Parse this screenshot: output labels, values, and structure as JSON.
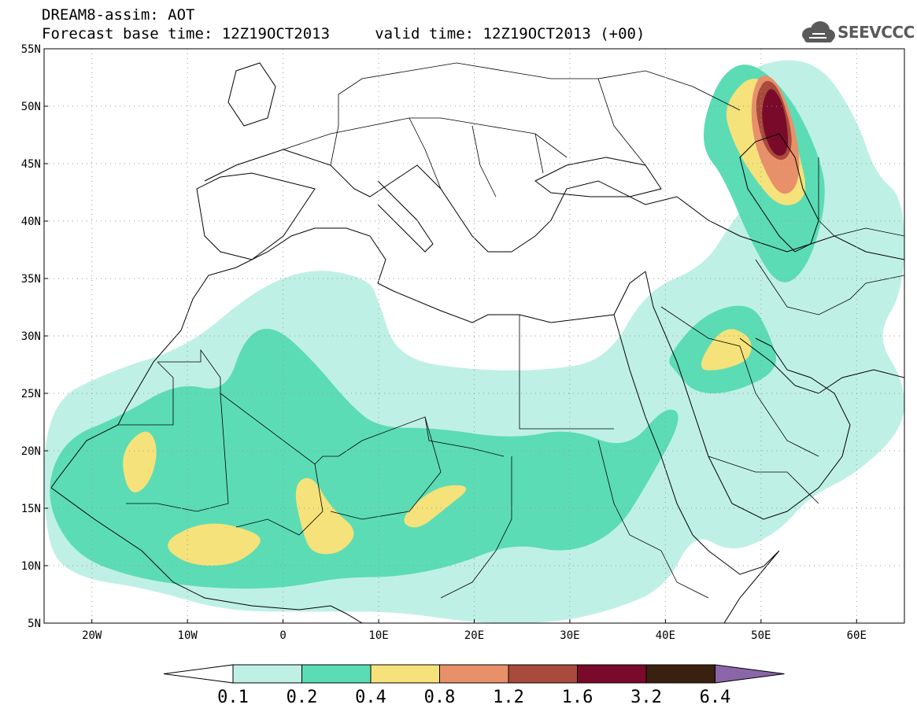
{
  "header": {
    "line1": "DREAM8-assim: AOT",
    "line2": "Forecast base time: 12Z19OCT2013     valid time: 12Z19OCT2013 (+00)"
  },
  "logo": {
    "text": "SEEVCCC",
    "icon": "cloud-icon"
  },
  "map": {
    "lon_range": [
      -25,
      65
    ],
    "lat_range": [
      5,
      55
    ],
    "lat_ticks": [
      {
        "value": 55,
        "label": "55N"
      },
      {
        "value": 50,
        "label": "50N"
      },
      {
        "value": 45,
        "label": "45N"
      },
      {
        "value": 40,
        "label": "40N"
      },
      {
        "value": 35,
        "label": "35N"
      },
      {
        "value": 30,
        "label": "30N"
      },
      {
        "value": 25,
        "label": "25N"
      },
      {
        "value": 20,
        "label": "20N"
      },
      {
        "value": 15,
        "label": "15N"
      },
      {
        "value": 10,
        "label": "10N"
      },
      {
        "value": 5,
        "label": "5N"
      }
    ],
    "lon_ticks": [
      {
        "value": -20,
        "label": "20W"
      },
      {
        "value": -10,
        "label": "10W"
      },
      {
        "value": 0,
        "label": "0"
      },
      {
        "value": 10,
        "label": "10E"
      },
      {
        "value": 20,
        "label": "20E"
      },
      {
        "value": 30,
        "label": "30E"
      },
      {
        "value": 40,
        "label": "40E"
      },
      {
        "value": 50,
        "label": "50E"
      },
      {
        "value": 60,
        "label": "60E"
      }
    ],
    "grid": true,
    "grid_style": "dotted"
  },
  "colorbar": {
    "levels": [
      "0.1",
      "0.2",
      "0.4",
      "0.8",
      "1.2",
      "1.6",
      "3.2",
      "6.4"
    ],
    "under_color": "#ffffff",
    "colors": [
      "#bff0e6",
      "#5cdcb4",
      "#f5e27a",
      "#e8906a",
      "#a84a3c",
      "#7a0a2a",
      "#3a2010"
    ],
    "over_color": "#8a66a8"
  },
  "chart_data": {
    "type": "heatmap",
    "variable": "AOT",
    "levels": [
      0.1,
      0.2,
      0.4,
      0.8,
      1.2,
      1.6,
      3.2,
      6.4
    ],
    "regions": [
      {
        "name": "plume",
        "level": 0.1,
        "ring": [
          [
            -25,
            24
          ],
          [
            -18,
            27
          ],
          [
            -10,
            29
          ],
          [
            -3,
            34
          ],
          [
            3,
            36
          ],
          [
            9,
            35
          ],
          [
            10,
            33
          ],
          [
            12,
            28
          ],
          [
            20,
            27
          ],
          [
            28,
            27
          ],
          [
            34,
            28
          ],
          [
            38,
            34
          ],
          [
            44,
            36
          ],
          [
            47,
            40
          ],
          [
            50,
            43
          ],
          [
            46,
            47
          ],
          [
            46,
            51
          ],
          [
            50,
            54
          ],
          [
            56,
            54
          ],
          [
            60,
            49
          ],
          [
            62,
            44
          ],
          [
            65,
            42
          ],
          [
            65,
            34
          ],
          [
            62,
            30
          ],
          [
            65,
            26
          ],
          [
            65,
            22
          ],
          [
            60,
            18
          ],
          [
            55,
            16
          ],
          [
            52,
            13
          ],
          [
            47,
            11
          ],
          [
            43,
            13
          ],
          [
            40,
            8
          ],
          [
            34,
            6
          ],
          [
            28,
            5
          ],
          [
            20,
            5
          ],
          [
            12,
            6
          ],
          [
            4,
            6
          ],
          [
            -6,
            6
          ],
          [
            -14,
            8
          ],
          [
            -22,
            9
          ],
          [
            -25,
            12
          ]
        ]
      },
      {
        "name": "core-africa",
        "level": 0.2,
        "ring": [
          [
            -25,
            16
          ],
          [
            -23,
            21
          ],
          [
            -17,
            23
          ],
          [
            -11,
            26
          ],
          [
            -6,
            25
          ],
          [
            -4,
            30
          ],
          [
            -1,
            31
          ],
          [
            3,
            28
          ],
          [
            7,
            24
          ],
          [
            10,
            22
          ],
          [
            16,
            22
          ],
          [
            24,
            21
          ],
          [
            30,
            22
          ],
          [
            36,
            20
          ],
          [
            40,
            24
          ],
          [
            42,
            23
          ],
          [
            38,
            17
          ],
          [
            35,
            13
          ],
          [
            30,
            11
          ],
          [
            24,
            12
          ],
          [
            18,
            10
          ],
          [
            12,
            9
          ],
          [
            6,
            9
          ],
          [
            0,
            8
          ],
          [
            -8,
            8
          ],
          [
            -16,
            9
          ],
          [
            -22,
            11
          ]
        ]
      },
      {
        "name": "core-arabia",
        "level": 0.2,
        "ring": [
          [
            40,
            28
          ],
          [
            44,
            32
          ],
          [
            49,
            33
          ],
          [
            51,
            30
          ],
          [
            52,
            27
          ],
          [
            47,
            25
          ],
          [
            43,
            25
          ],
          [
            41,
            27
          ]
        ]
      },
      {
        "name": "core-caspian",
        "level": 0.2,
        "ring": [
          [
            44,
            49
          ],
          [
            46,
            53
          ],
          [
            49,
            54
          ],
          [
            53,
            51
          ],
          [
            56,
            46
          ],
          [
            57,
            42
          ],
          [
            55,
            36
          ],
          [
            52,
            34
          ],
          [
            49,
            38
          ],
          [
            46,
            44
          ],
          [
            44,
            46
          ]
        ]
      },
      {
        "name": "dust-a",
        "level": 0.4,
        "ring": [
          [
            -17,
            19
          ],
          [
            -16,
            21
          ],
          [
            -14,
            22
          ],
          [
            -13,
            20
          ],
          [
            -14,
            17
          ],
          [
            -16,
            16
          ]
        ]
      },
      {
        "name": "dust-b",
        "level": 0.4,
        "ring": [
          [
            -13,
            12
          ],
          [
            -8,
            14
          ],
          [
            -3,
            13
          ],
          [
            -2,
            12
          ],
          [
            -5,
            10
          ],
          [
            -10,
            10
          ]
        ]
      },
      {
        "name": "dust-c",
        "level": 0.4,
        "ring": [
          [
            1,
            17
          ],
          [
            3,
            18
          ],
          [
            5,
            15
          ],
          [
            8,
            13
          ],
          [
            6,
            11
          ],
          [
            3,
            11
          ],
          [
            2,
            13
          ]
        ]
      },
      {
        "name": "dust-d",
        "level": 0.4,
        "ring": [
          [
            12,
            14
          ],
          [
            16,
            17
          ],
          [
            20,
            17
          ],
          [
            17,
            15
          ],
          [
            14,
            13
          ]
        ]
      },
      {
        "name": "dust-e",
        "level": 0.4,
        "ring": [
          [
            43,
            27
          ],
          [
            46,
            31
          ],
          [
            49,
            30
          ],
          [
            49,
            28
          ],
          [
            46,
            27
          ]
        ]
      },
      {
        "name": "dust-f",
        "level": 0.4,
        "ring": [
          [
            46,
            50
          ],
          [
            49,
            53
          ],
          [
            52,
            51
          ],
          [
            54,
            46
          ],
          [
            55,
            42
          ],
          [
            52,
            41
          ],
          [
            49,
            44
          ],
          [
            47,
            47
          ]
        ]
      },
      {
        "name": "caspian-1",
        "level": 0.8,
        "ring": [
          [
            49,
            51
          ],
          [
            50,
            53
          ],
          [
            52,
            52
          ],
          [
            54,
            47
          ],
          [
            54,
            43
          ],
          [
            52,
            42
          ],
          [
            50,
            45
          ],
          [
            49,
            48
          ]
        ]
      },
      {
        "name": "caspian-2",
        "level": 1.2,
        "ring": [
          [
            49.5,
            51
          ],
          [
            50.5,
            52.5
          ],
          [
            52,
            51.5
          ],
          [
            53.5,
            47
          ],
          [
            52.5,
            45
          ],
          [
            50.5,
            46
          ],
          [
            49.5,
            49
          ]
        ]
      },
      {
        "name": "caspian-3",
        "level": 1.6,
        "ring": [
          [
            50,
            50
          ],
          [
            51,
            52
          ],
          [
            52.5,
            50
          ],
          [
            53,
            46
          ],
          [
            51.5,
            45.5
          ],
          [
            50.3,
            47.5
          ]
        ]
      }
    ]
  }
}
